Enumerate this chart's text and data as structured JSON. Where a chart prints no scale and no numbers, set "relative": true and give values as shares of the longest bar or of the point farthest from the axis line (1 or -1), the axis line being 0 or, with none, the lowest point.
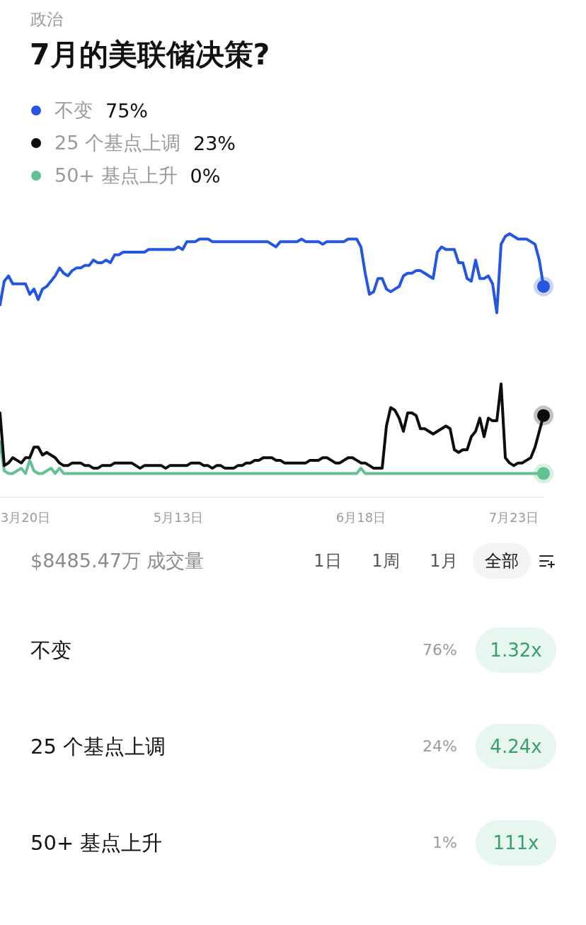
{
  "chart_data": [
    {
      "type": "line",
      "subtitle": "政治",
      "title": "7月的美联储决策?",
      "legend": "top left",
      "relative": true,
      "categories": [
        null,
        null,
        null,
        null,
        null,
        null,
        "3月20日",
        null,
        null,
        null,
        null,
        null,
        null,
        null,
        null,
        null,
        null,
        null,
        null,
        null,
        null,
        null,
        null,
        null,
        null,
        null,
        null,
        null,
        null,
        null,
        null,
        null,
        null,
        null,
        null,
        null,
        null,
        null,
        null,
        null,
        null,
        null,
        "5月13日",
        null,
        null,
        null,
        null,
        null,
        null,
        null,
        null,
        null,
        null,
        null,
        null,
        null,
        null,
        null,
        null,
        null,
        null,
        null,
        null,
        null,
        null,
        null,
        null,
        null,
        null,
        null,
        null,
        null,
        null,
        null,
        null,
        null,
        null,
        null,
        null,
        null,
        null,
        null,
        null,
        null,
        null,
        "6月18日",
        null,
        null,
        null,
        null,
        null,
        null,
        null,
        null,
        null,
        null,
        null,
        null,
        null,
        null,
        null,
        null,
        null,
        null,
        null,
        null,
        null,
        null,
        null,
        null,
        null,
        null,
        null,
        null,
        null,
        null,
        null,
        null,
        null,
        null,
        null,
        "7月23日",
        null,
        null,
        null,
        null,
        null,
        null,
        null
      ],
      "series": [
        {
          "name": "不变",
          "color": "#2556e2",
          "values": [
            0.73,
            0.82,
            0.84,
            0.81,
            0.81,
            0.81,
            0.81,
            0.77,
            0.79,
            0.75,
            0.79,
            0.8,
            0.82,
            0.84,
            0.87,
            0.85,
            0.84,
            0.86,
            0.87,
            0.87,
            0.88,
            0.88,
            0.9,
            0.89,
            0.89,
            0.9,
            0.89,
            0.92,
            0.92,
            0.93,
            0.93,
            0.93,
            0.93,
            0.93,
            0.93,
            0.94,
            0.94,
            0.94,
            0.94,
            0.94,
            0.94,
            0.94,
            0.95,
            0.94,
            0.97,
            0.97,
            0.97,
            0.98,
            0.98,
            0.98,
            0.97,
            0.97,
            0.97,
            0.97,
            0.97,
            0.97,
            0.97,
            0.97,
            0.97,
            0.97,
            0.97,
            0.97,
            0.97,
            0.97,
            0.96,
            0.95,
            0.97,
            0.97,
            0.97,
            0.97,
            0.97,
            0.98,
            0.97,
            0.97,
            0.97,
            0.97,
            0.96,
            0.97,
            0.97,
            0.97,
            0.97,
            0.97,
            0.98,
            0.98,
            0.98,
            0.95,
            0.85,
            0.77,
            0.78,
            0.83,
            0.83,
            0.79,
            0.78,
            0.79,
            0.8,
            0.84,
            0.85,
            0.85,
            0.86,
            0.86,
            0.85,
            0.84,
            0.83,
            0.93,
            0.95,
            0.94,
            0.94,
            0.94,
            0.89,
            0.89,
            0.83,
            0.82,
            0.9,
            0.83,
            0.83,
            0.84,
            0.81,
            0.7,
            0.96,
            0.99,
            1,
            0.99,
            0.98,
            0.98,
            0.98,
            0.97,
            0.96,
            0.9,
            0.8
          ]
        },
        {
          "name": "25 个基点上调",
          "color": "#0d0d0d",
          "values": [
            0.32,
            0.12,
            0.13,
            0.15,
            0.14,
            0.13,
            0.15,
            0.15,
            0.19,
            0.19,
            0.16,
            0.17,
            0.16,
            0.15,
            0.13,
            0.12,
            0.12,
            0.13,
            0.13,
            0.13,
            0.12,
            0.12,
            0.11,
            0.11,
            0.12,
            0.12,
            0.12,
            0.13,
            0.13,
            0.13,
            0.13,
            0.13,
            0.12,
            0.11,
            0.12,
            0.12,
            0.12,
            0.12,
            0.12,
            0.11,
            0.12,
            0.12,
            0.12,
            0.12,
            0.12,
            0.13,
            0.13,
            0.13,
            0.12,
            0.12,
            0.11,
            0.12,
            0.12,
            0.11,
            0.11,
            0.11,
            0.12,
            0.12,
            0.13,
            0.13,
            0.14,
            0.14,
            0.15,
            0.15,
            0.15,
            0.14,
            0.14,
            0.13,
            0.13,
            0.13,
            0.13,
            0.13,
            0.13,
            0.14,
            0.14,
            0.14,
            0.15,
            0.15,
            0.14,
            0.13,
            0.13,
            0.14,
            0.15,
            0.15,
            0.14,
            0.13,
            0.13,
            0.12,
            0.11,
            0.11,
            0.11,
            0.27,
            0.34,
            0.33,
            0.3,
            0.25,
            0.32,
            0.32,
            0.31,
            0.26,
            0.26,
            0.25,
            0.24,
            0.25,
            0.26,
            0.27,
            0.26,
            0.18,
            0.17,
            0.18,
            0.18,
            0.23,
            0.25,
            0.3,
            0.23,
            0.3,
            0.29,
            0.29,
            0.43,
            0.15,
            0.13,
            0.12,
            0.13,
            0.13,
            0.14,
            0.15,
            0.19,
            0.25,
            0.31
          ]
        },
        {
          "name": "50+ 基点上升",
          "color": "#63c194",
          "values": [
            0.21,
            0.1,
            0.09,
            0.09,
            0.1,
            0.11,
            0.09,
            0.14,
            0.1,
            0.09,
            0.09,
            0.1,
            0.11,
            0.09,
            0.11,
            0.09,
            0.09,
            0.09,
            0.09,
            0.09,
            0.09,
            0.09,
            0.09,
            0.09,
            0.09,
            0.09,
            0.09,
            0.09,
            0.09,
            0.09,
            0.09,
            0.09,
            0.09,
            0.09,
            0.09,
            0.09,
            0.09,
            0.09,
            0.09,
            0.09,
            0.09,
            0.09,
            0.09,
            0.09,
            0.09,
            0.09,
            0.09,
            0.09,
            0.09,
            0.09,
            0.09,
            0.09,
            0.09,
            0.09,
            0.09,
            0.09,
            0.09,
            0.09,
            0.09,
            0.09,
            0.09,
            0.09,
            0.09,
            0.09,
            0.09,
            0.09,
            0.09,
            0.09,
            0.09,
            0.09,
            0.09,
            0.09,
            0.09,
            0.09,
            0.09,
            0.09,
            0.09,
            0.09,
            0.09,
            0.09,
            0.09,
            0.09,
            0.09,
            0.09,
            0.09,
            0.11,
            0.09,
            0.09,
            0.09,
            0.09,
            0.09,
            0.09,
            0.09,
            0.09,
            0.09,
            0.09,
            0.09,
            0.09,
            0.09,
            0.09,
            0.09,
            0.09,
            0.09,
            0.09,
            0.09,
            0.09,
            0.09,
            0.09,
            0.09,
            0.09,
            0.09,
            0.09,
            0.09,
            0.09,
            0.09,
            0.09,
            0.09,
            0.09,
            0.09,
            0.09,
            0.09,
            0.09,
            0.09,
            0.09,
            0.09,
            0.09,
            0.09,
            0.09,
            0.09
          ]
        }
      ],
      "annotations": [
        "75%",
        "23%",
        "0%",
        "$8485.47万 成交量",
        "1日",
        "1周",
        "1月",
        "全部"
      ]
    },
    {
      "type": "other",
      "annotations": [
        "不变",
        "76%",
        "1.32x",
        "25 个基点上调",
        "24%",
        "4.24x",
        "50+ 基点上升",
        "1%",
        "111x"
      ]
    }
  ]
}
